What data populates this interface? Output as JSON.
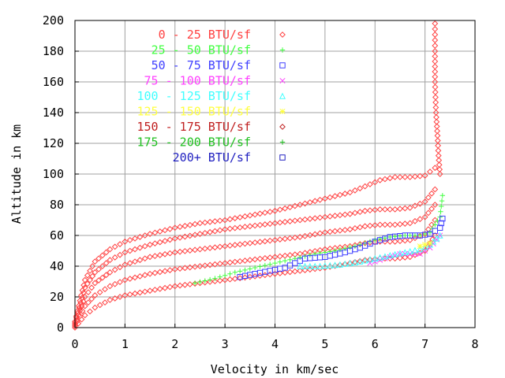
{
  "chart_data": {
    "type": "scatter",
    "title": "",
    "xlabel": "Velocity in km/sec",
    "ylabel": "Altitude in km",
    "xlim": [
      0,
      8
    ],
    "ylim": [
      0,
      200
    ],
    "xticks": [
      "0",
      "1",
      "2",
      "3",
      "4",
      "5",
      "6",
      "7",
      "8"
    ],
    "yticks": [
      "0",
      "20",
      "40",
      "60",
      "80",
      "100",
      "120",
      "140",
      "160",
      "180",
      "200"
    ],
    "grid": true,
    "legend_position": "top-left",
    "series": [
      {
        "name": "0 - 25 BTU/sf",
        "color": "#ff4040",
        "marker": "diamond",
        "curves": [
          {
            "x": [
              0.0,
              0.2,
              0.4,
              0.7,
              1.0,
              1.5,
              2.0,
              2.5,
              3.0,
              3.5,
              4.0,
              4.5,
              5.0,
              5.5,
              5.8,
              6.1,
              6.4,
              6.7,
              7.0,
              7.2
            ],
            "y": [
              0,
              8,
              13,
              18,
              21,
              24,
              27,
              29,
              31,
              33,
              35,
              37,
              39,
              42,
              44,
              45,
              45,
              46,
              50,
              60
            ]
          },
          {
            "x": [
              0.0,
              0.2,
              0.4,
              0.7,
              1.0,
              1.5,
              2.0,
              2.5,
              3.0,
              3.5,
              4.0,
              4.5,
              5.0,
              5.5,
              5.8,
              6.1,
              6.4,
              6.7,
              7.0,
              7.2
            ],
            "y": [
              1,
              14,
              21,
              27,
              31,
              35,
              38,
              40,
              42,
              44,
              46,
              48,
              51,
              53,
              55,
              56,
              56,
              57,
              61,
              70
            ]
          },
          {
            "x": [
              0.0,
              0.2,
              0.4,
              0.7,
              1.0,
              1.5,
              2.0,
              2.5,
              3.0,
              3.5,
              4.0,
              4.5,
              5.0,
              5.5,
              5.8,
              6.1,
              6.4,
              6.7,
              7.0,
              7.2
            ],
            "y": [
              2,
              20,
              29,
              36,
              41,
              46,
              49,
              51,
              53,
              55,
              57,
              59,
              62,
              64,
              66,
              67,
              67,
              68,
              72,
              80
            ]
          },
          {
            "x": [
              0.0,
              0.2,
              0.4,
              0.7,
              1.0,
              1.5,
              2.0,
              2.5,
              3.0,
              3.5,
              4.0,
              4.5,
              5.0,
              5.5,
              5.8,
              6.1,
              6.4,
              6.7,
              7.0,
              7.2
            ],
            "y": [
              3,
              26,
              36,
              44,
              49,
              54,
              58,
              61,
              64,
              66,
              68,
              70,
              72,
              74,
              76,
              77,
              77,
              78,
              82,
              90
            ]
          },
          {
            "x": [
              0.0,
              0.2,
              0.4,
              0.7,
              1.0,
              1.5,
              2.0,
              2.5,
              3.0,
              3.5,
              4.0,
              4.5,
              5.0,
              5.5,
              5.8,
              6.1,
              6.4,
              6.7,
              7.0,
              7.2
            ],
            "y": [
              4,
              31,
              43,
              51,
              56,
              61,
              65,
              68,
              70,
              73,
              76,
              80,
              84,
              88,
              92,
              96,
              98,
              98,
              99,
              104
            ]
          },
          {
            "x": [
              7.2,
              7.2,
              7.2,
              7.22,
              7.25,
              7.27,
              7.3
            ],
            "y": [
              198,
              180,
              160,
              140,
              125,
              112,
              100
            ]
          }
        ]
      },
      {
        "name": "25 - 50 BTU/sf",
        "color": "#40ff40",
        "marker": "plus",
        "curves": [
          {
            "x": [
              2.4,
              2.8,
              3.2,
              3.6,
              4.0,
              4.4,
              4.8,
              5.2,
              5.6,
              6.0,
              6.3,
              6.6,
              6.9,
              7.1,
              7.3,
              7.35
            ],
            "y": [
              29,
              32,
              36,
              39,
              42,
              45,
              48,
              50,
              53,
              57,
              59,
              60,
              60,
              62,
              72,
              86
            ]
          }
        ]
      },
      {
        "name": "50 - 75 BTU/sf",
        "color": "#4040ff",
        "marker": "square",
        "curves": [
          {
            "x": [
              3.3,
              3.6,
              3.9,
              4.2,
              4.6,
              5.0,
              5.4,
              5.7,
              6.0,
              6.3,
              6.6,
              6.9,
              7.1,
              7.3,
              7.35
            ],
            "y": [
              33,
              35,
              37,
              39,
              45,
              46,
              49,
              52,
              56,
              59,
              60,
              60,
              61,
              65,
              71
            ]
          }
        ]
      },
      {
        "name": "75 - 100 BTU/sf",
        "color": "#ff40ff",
        "marker": "cross",
        "curves": [
          {
            "x": [
              5.9,
              6.1,
              6.3,
              6.5,
              6.7,
              6.9,
              7.1,
              7.3
            ],
            "y": [
              42,
              44,
              46,
              48,
              48,
              48,
              52,
              60
            ]
          }
        ]
      },
      {
        "name": "100 - 125 BTU/sf",
        "color": "#40ffff",
        "marker": "triangle",
        "curves": [
          {
            "x": [
              4.5,
              4.9,
              5.3,
              5.7,
              6.0,
              6.3,
              6.6,
              6.9,
              7.1,
              7.3
            ],
            "y": [
              40,
              40,
              41,
              43,
              45,
              47,
              49,
              51,
              54,
              60
            ]
          }
        ]
      },
      {
        "name": "125 - 150 BTU/sf",
        "color": "#ffff40",
        "marker": "star",
        "curves": [
          {
            "x": [
              6.9,
              7.0,
              7.1
            ],
            "y": [
              53,
              54,
              55
            ]
          }
        ]
      },
      {
        "name": "150 - 175 BTU/sf",
        "color": "#c02020",
        "marker": "diamond",
        "curves": []
      },
      {
        "name": "175 - 200 BTU/sf",
        "color": "#20c020",
        "marker": "plus",
        "curves": []
      },
      {
        "name": "200+ BTU/sf",
        "color": "#2020c0",
        "marker": "square",
        "curves": []
      }
    ]
  }
}
